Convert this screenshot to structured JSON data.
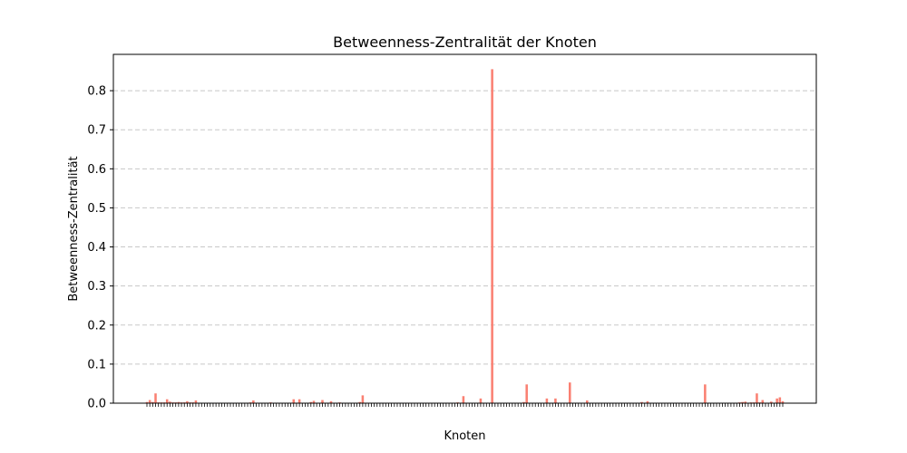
{
  "chart_data": {
    "type": "bar",
    "title": "Betweenness-Zentralität der Knoten",
    "xlabel": "Knoten",
    "ylabel": "Betweenness-Zentralität",
    "ylim": [
      0,
      0.893
    ],
    "yticks": [
      "0.0",
      "0.1",
      "0.2",
      "0.3",
      "0.4",
      "0.5",
      "0.6",
      "0.7",
      "0.8"
    ],
    "x_tick_labels_visible": false,
    "grid": {
      "axis": "y",
      "style": "dashed"
    },
    "bar_color": "#fa8072",
    "series": [
      {
        "values": [
          0.003,
          0.008,
          0.003,
          0.025,
          0.002,
          0.002,
          0.002,
          0.01,
          0.004,
          0.002,
          0.002,
          0.003,
          0.002,
          0.002,
          0.005,
          0.002,
          0.002,
          0.007,
          0.001,
          0.001,
          0.0,
          0.0,
          0.0,
          0.0,
          0.0,
          0.0,
          0.0,
          0.0,
          0.0,
          0.0,
          0.0,
          0.0,
          0.0,
          0.0,
          0.0,
          0.0,
          0.002,
          0.007,
          0.0,
          0.0,
          0.0,
          0.0,
          0.0,
          0.002,
          0.0,
          0.0,
          0.0,
          0.0,
          0.0,
          0.0,
          0.0,
          0.01,
          0.0,
          0.01,
          0.0,
          0.0,
          0.0,
          0.003,
          0.006,
          0.0,
          0.0,
          0.008,
          0.0,
          0.0,
          0.005,
          0.0,
          0.0,
          0.002,
          0.0,
          0.0,
          0.0,
          0.0,
          0.0,
          0.001,
          0.003,
          0.02,
          0.0,
          0.0,
          0.0,
          0.0,
          0.0,
          0.0,
          0.0,
          0.0,
          0.0,
          0.0,
          0.0,
          0.0,
          0.0,
          0.0,
          0.0,
          0.0,
          0.0,
          0.0,
          0.0,
          0.0,
          0.0,
          0.0,
          0.0,
          0.0,
          0.0,
          0.0,
          0.0,
          0.0,
          0.0,
          0.0,
          0.0,
          0.0,
          0.002,
          0.0,
          0.018,
          0.0,
          0.0,
          0.0,
          0.0,
          0.0,
          0.012,
          0.0,
          0.0,
          0.0,
          0.855,
          0.0,
          0.0,
          0.0,
          0.0,
          0.0,
          0.0,
          0.0,
          0.0,
          0.0,
          0.0,
          0.003,
          0.048,
          0.0,
          0.0,
          0.0,
          0.0,
          0.0,
          0.0,
          0.012,
          0.0,
          0.0,
          0.012,
          0.0,
          0.0,
          0.0,
          0.0,
          0.053,
          0.0,
          0.0,
          0.0,
          0.0,
          0.0,
          0.007,
          0.0,
          0.0,
          0.0,
          0.0,
          0.0,
          0.0,
          0.0,
          0.0,
          0.0,
          0.0,
          0.0,
          0.0,
          0.0,
          0.0,
          0.0,
          0.0,
          0.0,
          0.0,
          0.003,
          0.0,
          0.005,
          0.0,
          0.0,
          0.0,
          0.0,
          0.0,
          0.0,
          0.0,
          0.0,
          0.0,
          0.0,
          0.0,
          0.0,
          0.0,
          0.0,
          0.0,
          0.0,
          0.0,
          0.0,
          0.0,
          0.048,
          0.0,
          0.0,
          0.0,
          0.0,
          0.0,
          0.0,
          0.0,
          0.0,
          0.0,
          0.0,
          0.0,
          0.002,
          0.003,
          0.004,
          0.0,
          0.002,
          0.002,
          0.025,
          0.002,
          0.008,
          0.0,
          0.0,
          0.004,
          0.0,
          0.012,
          0.015,
          0.005
        ]
      }
    ]
  }
}
